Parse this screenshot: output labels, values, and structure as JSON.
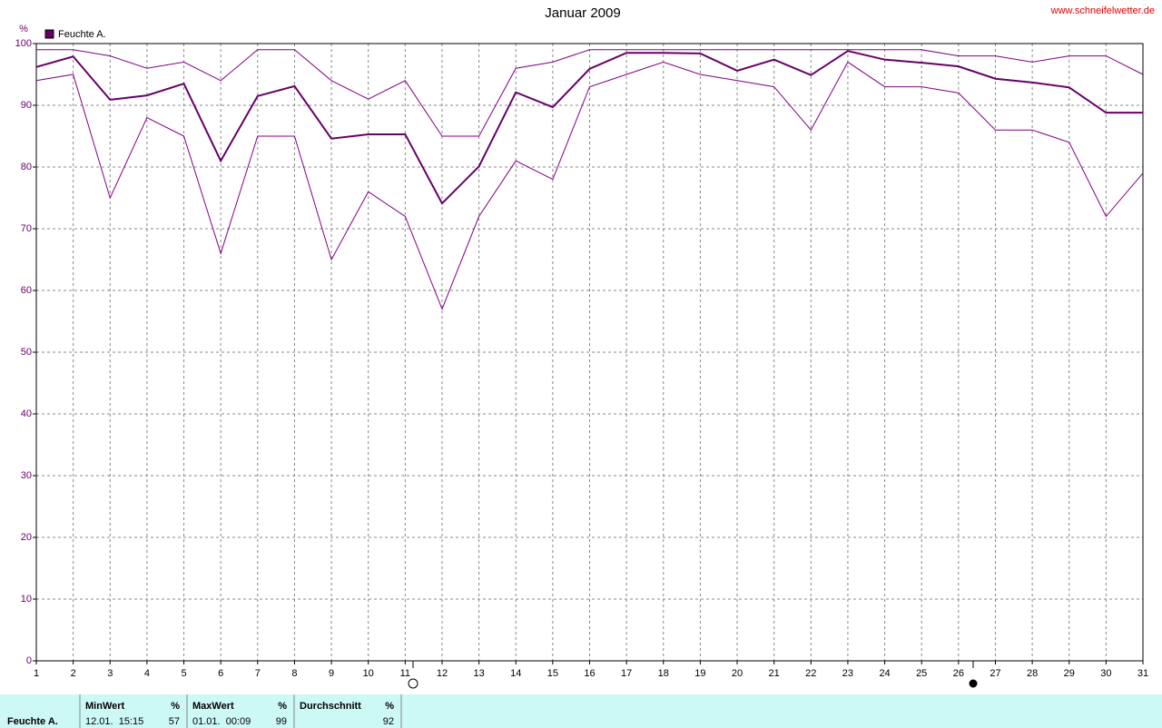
{
  "chart_data": {
    "type": "line",
    "title": "Januar 2009",
    "source": "www.schneifelwetter.de",
    "y_unit": "%",
    "x": [
      1,
      2,
      3,
      4,
      5,
      6,
      7,
      8,
      9,
      10,
      11,
      12,
      13,
      14,
      15,
      16,
      17,
      18,
      19,
      20,
      21,
      22,
      23,
      24,
      25,
      26,
      27,
      28,
      29,
      30,
      31
    ],
    "xlim": [
      1,
      31
    ],
    "xticks": [
      1,
      2,
      3,
      4,
      5,
      6,
      7,
      8,
      9,
      10,
      11,
      12,
      13,
      14,
      15,
      16,
      17,
      18,
      19,
      20,
      21,
      22,
      23,
      24,
      25,
      26,
      27,
      28,
      29,
      30,
      31
    ],
    "ylim": [
      0,
      100
    ],
    "yticks": [
      0,
      10,
      20,
      30,
      40,
      50,
      60,
      70,
      80,
      90,
      100
    ],
    "grid": true,
    "series": [
      {
        "name": "Feuchte A.",
        "color": "#660066",
        "line_width": 2,
        "values": [
          96.2,
          97.9,
          90.9,
          91.6,
          93.5,
          81.0,
          91.5,
          93.1,
          84.6,
          85.3,
          85.3,
          74.1,
          80.1,
          92.1,
          89.7,
          95.9,
          98.5,
          98.5,
          98.4,
          95.6,
          97.4,
          94.9,
          98.8,
          97.4,
          96.9,
          96.3,
          94.3,
          93.7,
          92.9,
          88.8,
          88.8
        ]
      },
      {
        "color": "#800080",
        "line_width": 1,
        "values": [
          99,
          99,
          98,
          96,
          97,
          94,
          99,
          99,
          94,
          91,
          94,
          85,
          85,
          96,
          97,
          99,
          99,
          99,
          99,
          99,
          99,
          99,
          99,
          99,
          99,
          98,
          98,
          97,
          98,
          98,
          95
        ]
      },
      {
        "color": "#800080",
        "line_width": 1,
        "values": [
          94,
          95,
          75,
          88,
          85,
          66,
          85,
          85,
          65,
          76,
          72,
          57,
          72,
          81,
          78,
          93,
          95,
          97,
          95,
          94,
          93,
          86,
          97,
          93,
          93,
          92,
          86,
          86,
          84,
          72,
          79
        ]
      }
    ]
  },
  "stats": {
    "label": "Feuchte A.",
    "columns": [
      {
        "header": "MinWert",
        "unit": "%",
        "time": "12.01.  15:15",
        "value": 57
      },
      {
        "header": "MaxWert",
        "unit": "%",
        "time": "01.01.  00:09",
        "value": 99
      },
      {
        "header": "Durchschnitt",
        "unit": "%",
        "value": 92
      }
    ]
  }
}
